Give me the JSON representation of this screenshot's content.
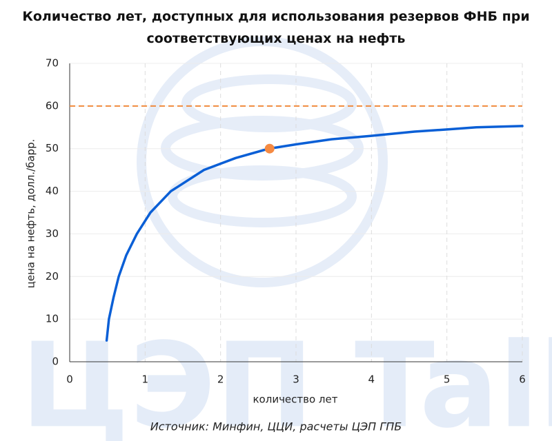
{
  "chart_data": {
    "type": "line",
    "title": "Количество лет, доступных для использования резервов ФНБ при соответствующих ценах на нефть",
    "xlabel": "количество лет",
    "ylabel": "цена на нефть, долл./барр.",
    "source": "Источник: Минфин, ЦЦИ, расчеты ЦЭП ГПБ",
    "watermark": "ЦЭП Talks",
    "x": [
      0.49,
      0.52,
      0.58,
      0.65,
      0.75,
      0.89,
      1.07,
      1.34,
      1.78,
      2.2,
      2.64,
      3.0,
      3.47,
      4.0,
      4.57,
      5.0,
      5.39,
      6.0
    ],
    "values": [
      5,
      10,
      15,
      20,
      25,
      30,
      35,
      40,
      45,
      47.8,
      50,
      51,
      52.2,
      53,
      54,
      54.5,
      55,
      55.3
    ],
    "color": "#0a5fd6",
    "reference_line": {
      "y": 60,
      "color": "#f08a3c"
    },
    "highlight_point": {
      "x": 2.65,
      "y": 50,
      "color": "#f58a42"
    },
    "xlim": [
      0,
      6
    ],
    "xticks": [
      0,
      1,
      2,
      3,
      4,
      5,
      6
    ],
    "ylim": [
      0,
      70
    ],
    "yticks": [
      0,
      10,
      20,
      30,
      40,
      50,
      60,
      70
    ],
    "grid": true
  }
}
